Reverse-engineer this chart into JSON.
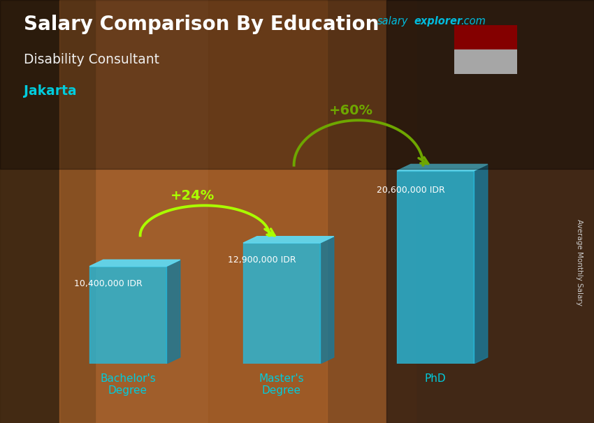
{
  "title1": "Salary Comparison By Education",
  "subtitle1": "Disability Consultant",
  "subtitle2": "Jakarta",
  "ylabel": "Average Monthly Salary",
  "categories": [
    "Bachelor's\nDegree",
    "Master's\nDegree",
    "PhD"
  ],
  "values": [
    10400000,
    12900000,
    20600000
  ],
  "value_labels": [
    "10,400,000 IDR",
    "12,900,000 IDR",
    "20,600,000 IDR"
  ],
  "pct_labels": [
    "+24%",
    "+60%"
  ],
  "bar_color_front": "#29b8d8",
  "bar_color_side": "#1a7a99",
  "bar_color_top": "#60d8f0",
  "bar_alpha": 0.82,
  "bg_color": "#7a4a25",
  "title_color": "#ffffff",
  "subtitle1_color": "#f0f0f0",
  "subtitle2_color": "#00ccdd",
  "watermark_salary_color": "#00bbdd",
  "watermark_explorer_color": "#00bbdd",
  "watermark_com_color": "#00bbdd",
  "value_label_color": "#ffffff",
  "pct_label_color": "#aaff00",
  "arrow_color": "#aaff00",
  "xtick_color": "#00ccdd",
  "flag_red": "#cc0000",
  "flag_white": "#ffffff",
  "ylim": [
    0,
    28000000
  ],
  "bar_width": 0.5
}
